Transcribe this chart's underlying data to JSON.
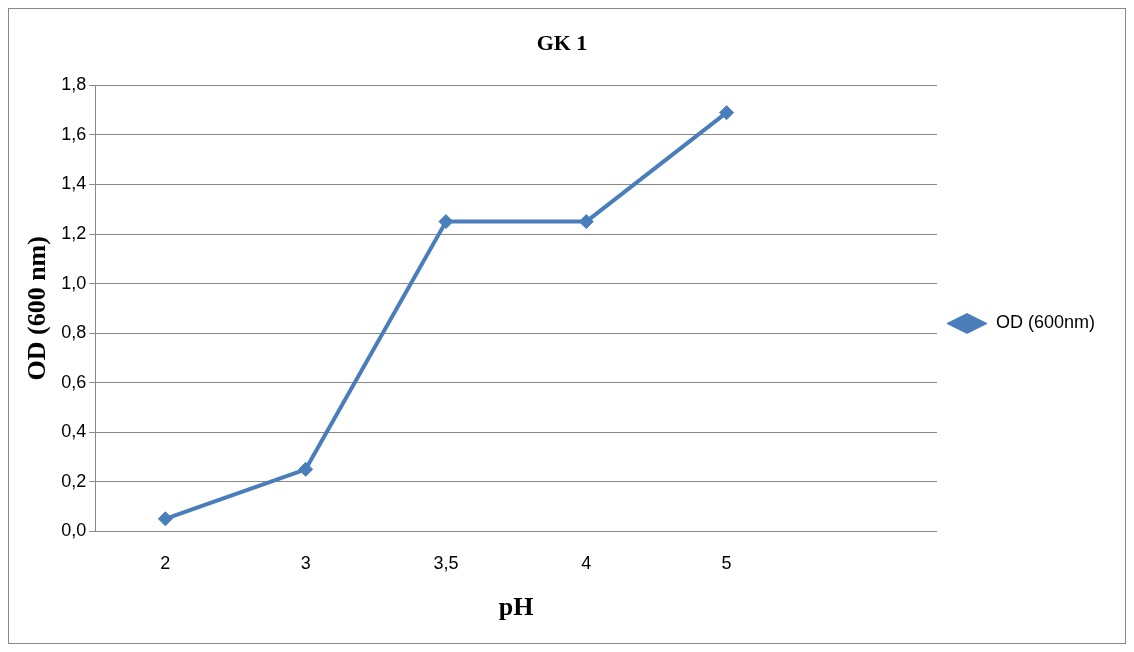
{
  "chart_data": {
    "type": "line",
    "title": "GK 1",
    "xlabel": "pH",
    "ylabel": "OD (600 nm)",
    "categories": [
      "2",
      "3",
      "3,5",
      "4",
      "5",
      null
    ],
    "series": [
      {
        "name": "OD (600nm)",
        "color": "#4a7ebb",
        "values": [
          0.05,
          0.25,
          1.25,
          1.25,
          1.69,
          null
        ]
      }
    ],
    "ylim": [
      0,
      1.8
    ],
    "yticks": [
      {
        "value": 0,
        "label": "0,0"
      },
      {
        "value": 0.2,
        "label": "0,2"
      },
      {
        "value": 0.4,
        "label": "0,4"
      },
      {
        "value": 0.6,
        "label": "0,6"
      },
      {
        "value": 0.8,
        "label": "0,8"
      },
      {
        "value": 1.0,
        "label": "1,0"
      },
      {
        "value": 1.2,
        "label": "1,2"
      },
      {
        "value": 1.4,
        "label": "1,4"
      },
      {
        "value": 1.6,
        "label": "1,6"
      },
      {
        "value": 1.8,
        "label": "1,8"
      }
    ],
    "grid": "y",
    "legend": "right",
    "marker": "diamond",
    "line_style": "solid"
  }
}
